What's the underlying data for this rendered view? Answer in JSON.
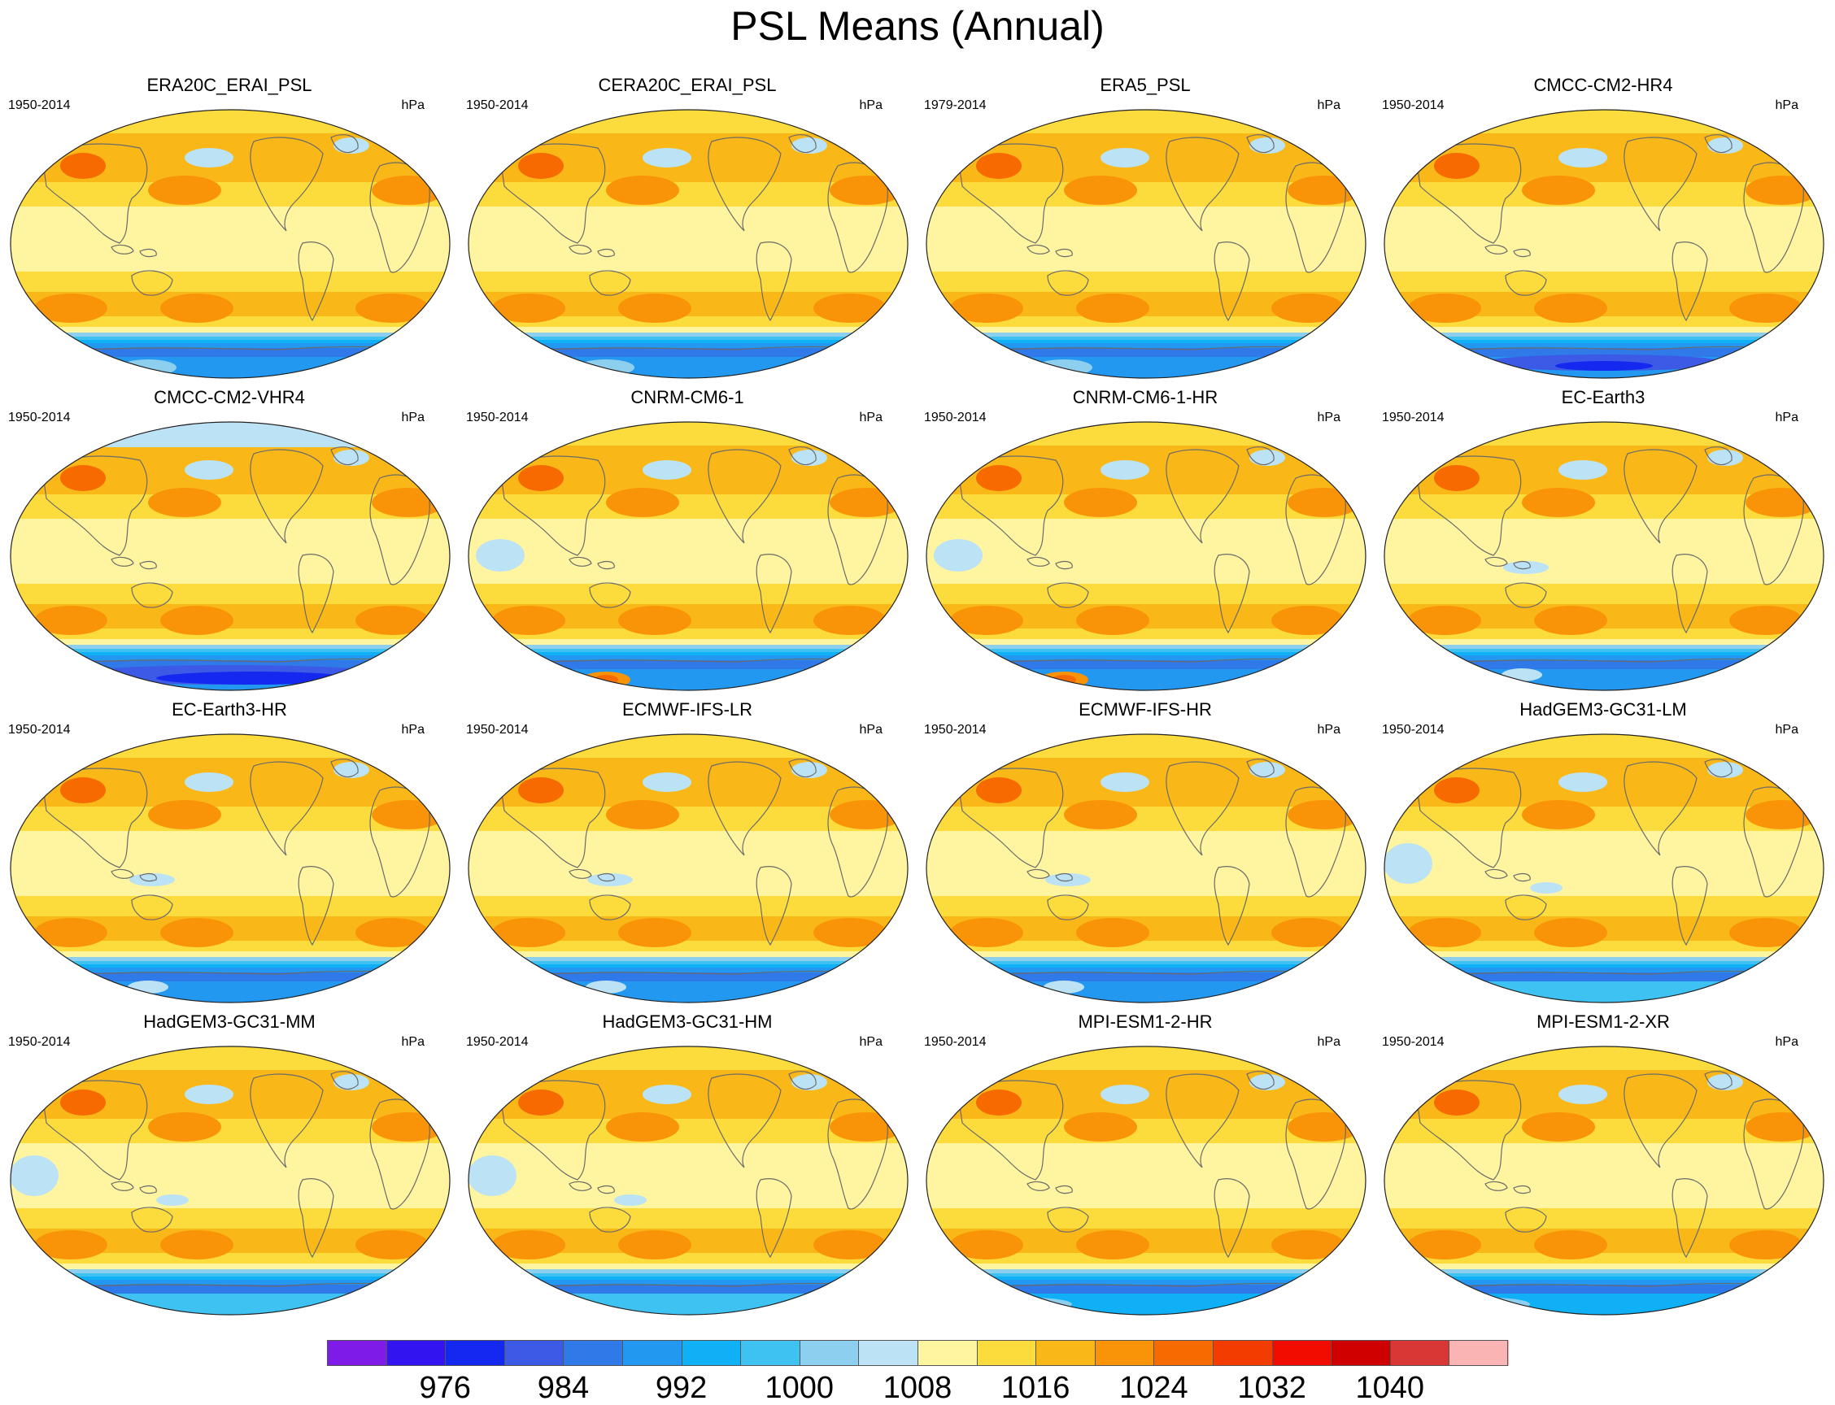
{
  "title": "PSL Means (Annual)",
  "colorbar": {
    "colors": [
      "#7e1be6",
      "#3214f0",
      "#1428f0",
      "#3c5ae6",
      "#2f7ae8",
      "#2298f0",
      "#0fb0f5",
      "#3ec2f2",
      "#8dcfee",
      "#bce2f5",
      "#fff5a0",
      "#fcdc3c",
      "#f9b818",
      "#f99408",
      "#f76a00",
      "#f23c00",
      "#f20c00",
      "#cf0000",
      "#d93636",
      "#fbb4b4"
    ],
    "labels": [
      "976",
      "984",
      "992",
      "1000",
      "1008",
      "1016",
      "1024",
      "1032",
      "1040"
    ]
  },
  "panels": [
    {
      "title": "ERA20C_ERAI_PSL",
      "period": "1950-2014",
      "units": "hPa"
    },
    {
      "title": "CERA20C_ERAI_PSL",
      "period": "1950-2014",
      "units": "hPa"
    },
    {
      "title": "ERA5_PSL",
      "period": "1979-2014",
      "units": "hPa"
    },
    {
      "title": "CMCC-CM2-HR4",
      "period": "1950-2014",
      "units": "hPa"
    },
    {
      "title": "CMCC-CM2-VHR4",
      "period": "1950-2014",
      "units": "hPa"
    },
    {
      "title": "CNRM-CM6-1",
      "period": "1950-2014",
      "units": "hPa"
    },
    {
      "title": "CNRM-CM6-1-HR",
      "period": "1950-2014",
      "units": "hPa"
    },
    {
      "title": "EC-Earth3",
      "period": "1950-2014",
      "units": "hPa"
    },
    {
      "title": "EC-Earth3-HR",
      "period": "1950-2014",
      "units": "hPa"
    },
    {
      "title": "ECMWF-IFS-LR",
      "period": "1950-2014",
      "units": "hPa"
    },
    {
      "title": "ECMWF-IFS-HR",
      "period": "1950-2014",
      "units": "hPa"
    },
    {
      "title": "HadGEM3-GC31-LM",
      "period": "1950-2014",
      "units": "hPa"
    },
    {
      "title": "HadGEM3-GC31-MM",
      "period": "1950-2014",
      "units": "hPa"
    },
    {
      "title": "HadGEM3-GC31-HM",
      "period": "1950-2014",
      "units": "hPa"
    },
    {
      "title": "MPI-ESM1-2-HR",
      "period": "1950-2014",
      "units": "hPa"
    },
    {
      "title": "MPI-ESM1-2-XR",
      "period": "1950-2014",
      "units": "hPa"
    }
  ]
}
